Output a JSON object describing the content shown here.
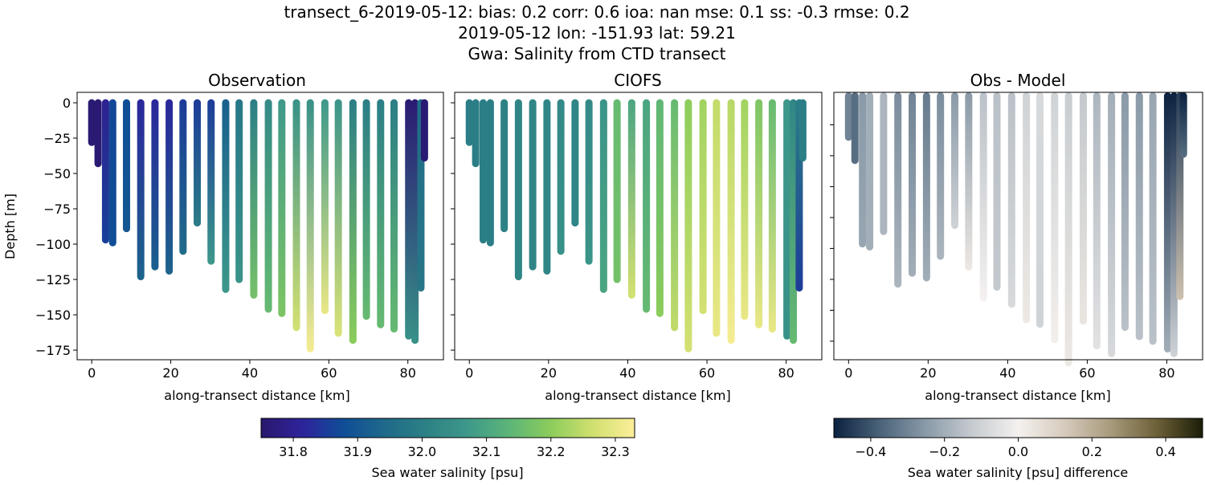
{
  "title_lines": [
    "transect_6-2019-05-12: bias: 0.2  corr: 0.6  ioa: nan  mse: 0.1  ss: -0.3  rmse: 0.2",
    "2019-05-12 lon: -151.93 lat: 59.21",
    "Gwa: Salinity from CTD transect"
  ],
  "chart_data": {
    "type": "scatter",
    "xlabel": "along-transect distance [km]",
    "ylabel": "Depth [m]",
    "xlim": [
      -3.7,
      89
    ],
    "xticks": [
      0,
      20,
      40,
      60,
      80
    ],
    "panels": [
      {
        "title": "Observation",
        "field": "obs",
        "cmap": "haline",
        "ylim": [
          7.4,
          -181.8
        ],
        "yticks": [
          0,
          -25,
          -50,
          -75,
          -100,
          -125,
          -150,
          -175
        ],
        "ytick_labels": [
          "0",
          "−25",
          "−50",
          "−75",
          "−100",
          "−125",
          "−150",
          "−175"
        ],
        "show_ylabels": true
      },
      {
        "title": "CIOFS",
        "field": "model",
        "cmap": "haline",
        "ylim": [
          7.4,
          -181.8
        ],
        "yticks": [
          0,
          -25,
          -50,
          -75,
          -100,
          -125,
          -150,
          -175
        ],
        "show_ylabels": false
      },
      {
        "title": "Obs - Model",
        "field": "diff",
        "cmap": "diff",
        "ylim": [
          1,
          -172
        ],
        "yticks": [
          -20,
          -40,
          -60,
          -80,
          -100,
          -120,
          -140,
          -160
        ],
        "show_ylabels": false
      }
    ],
    "xtick_labels": [
      "0",
      "20",
      "40",
      "60",
      "80"
    ],
    "stations": [
      {
        "km": 0.0,
        "depth": 28,
        "obs": [
          31.76,
          31.76
        ],
        "model": [
          32.0,
          32.0
        ],
        "diff": [
          -0.3,
          -0.3
        ]
      },
      {
        "km": 1.6,
        "depth": 43,
        "obs": [
          31.76,
          31.76
        ],
        "model": [
          32.0,
          32.0
        ],
        "diff": [
          -0.35,
          -0.35
        ]
      },
      {
        "km": 3.5,
        "depth": 97,
        "obs": [
          31.8,
          31.86
        ],
        "model": [
          32.0,
          32.0
        ],
        "diff": [
          -0.25,
          -0.22
        ]
      },
      {
        "km": 5.3,
        "depth": 99,
        "obs": [
          31.87,
          31.88
        ],
        "model": [
          32.0,
          32.0
        ],
        "diff": [
          -0.2,
          -0.2
        ]
      },
      {
        "km": 8.8,
        "depth": 89,
        "obs": [
          31.88,
          31.9
        ],
        "model": [
          32.01,
          32.01
        ],
        "diff": [
          -0.18,
          -0.18
        ]
      },
      {
        "km": 12.4,
        "depth": 123,
        "obs": [
          31.82,
          31.93
        ],
        "model": [
          32.02,
          32.02
        ],
        "diff": [
          -0.28,
          -0.18
        ]
      },
      {
        "km": 16.0,
        "depth": 116,
        "obs": [
          31.82,
          31.92
        ],
        "model": [
          32.02,
          32.02
        ],
        "diff": [
          -0.3,
          -0.2
        ]
      },
      {
        "km": 19.6,
        "depth": 119,
        "obs": [
          31.82,
          31.93
        ],
        "model": [
          32.02,
          32.02
        ],
        "diff": [
          -0.32,
          -0.2
        ]
      },
      {
        "km": 23.1,
        "depth": 105,
        "obs": [
          31.85,
          31.95
        ],
        "model": [
          32.03,
          32.05
        ],
        "diff": [
          -0.28,
          -0.18
        ]
      },
      {
        "km": 26.7,
        "depth": 85,
        "obs": [
          31.85,
          32.0
        ],
        "model": [
          32.02,
          32.02
        ],
        "diff": [
          -0.25,
          -0.1
        ]
      },
      {
        "km": 30.2,
        "depth": 112,
        "obs": [
          31.85,
          32.07
        ],
        "model": [
          32.03,
          32.06
        ],
        "diff": [
          -0.25,
          0.03
        ]
      },
      {
        "km": 33.9,
        "depth": 132,
        "obs": [
          31.92,
          32.07
        ],
        "model": [
          32.06,
          32.1
        ],
        "diff": [
          -0.15,
          0.0
        ]
      },
      {
        "km": 37.3,
        "depth": 125,
        "obs": [
          31.98,
          32.06
        ],
        "model": [
          32.15,
          32.17
        ],
        "diff": [
          -0.15,
          -0.13
        ]
      },
      {
        "km": 41.0,
        "depth": 136,
        "obs": [
          32.0,
          32.17
        ],
        "model": [
          32.1,
          32.27
        ],
        "diff": [
          -0.15,
          -0.08
        ]
      },
      {
        "km": 44.7,
        "depth": 146,
        "obs": [
          32.03,
          32.15
        ],
        "model": [
          32.1,
          32.15
        ],
        "diff": [
          -0.1,
          0.03
        ]
      },
      {
        "km": 48.1,
        "depth": 149,
        "obs": [
          32.07,
          32.18
        ],
        "model": [
          32.14,
          32.2
        ],
        "diff": [
          -0.08,
          -0.1
        ]
      },
      {
        "km": 51.8,
        "depth": 159,
        "obs": [
          32.05,
          32.27
        ],
        "model": [
          32.15,
          32.25
        ],
        "diff": [
          -0.1,
          0.01
        ]
      },
      {
        "km": 55.3,
        "depth": 174,
        "obs": [
          32.05,
          32.32
        ],
        "model": [
          32.2,
          32.27
        ],
        "diff": [
          -0.12,
          0.03
        ]
      },
      {
        "km": 59.0,
        "depth": 147,
        "obs": [
          32.07,
          32.3
        ],
        "model": [
          32.22,
          32.27
        ],
        "diff": [
          -0.13,
          0.04
        ]
      },
      {
        "km": 62.4,
        "depth": 163,
        "obs": [
          32.06,
          32.28
        ],
        "model": [
          32.25,
          32.3
        ],
        "diff": [
          -0.18,
          -0.05
        ]
      },
      {
        "km": 66.1,
        "depth": 168,
        "obs": [
          32.0,
          32.2
        ],
        "model": [
          32.24,
          32.32
        ],
        "diff": [
          -0.2,
          -0.08
        ]
      },
      {
        "km": 69.5,
        "depth": 151,
        "obs": [
          32.0,
          32.15
        ],
        "model": [
          32.22,
          32.3
        ],
        "diff": [
          -0.25,
          -0.15
        ]
      },
      {
        "km": 73.1,
        "depth": 157,
        "obs": [
          32.0,
          32.15
        ],
        "model": [
          32.18,
          32.3
        ],
        "diff": [
          -0.25,
          -0.15
        ]
      },
      {
        "km": 76.5,
        "depth": 160,
        "obs": [
          32.0,
          32.15
        ],
        "model": [
          32.15,
          32.3
        ],
        "diff": [
          -0.22,
          -0.15
        ]
      },
      {
        "km": 80.2,
        "depth": 165,
        "obs": [
          31.76,
          32.05
        ],
        "model": [
          32.07,
          32.05
        ],
        "diff": [
          -0.5,
          -0.2
        ]
      },
      {
        "km": 81.8,
        "depth": 168,
        "obs": [
          31.76,
          32.05
        ],
        "model": [
          32.02,
          32.15
        ],
        "diff": [
          -0.5,
          -0.1
        ]
      },
      {
        "km": 83.3,
        "depth": 131,
        "obs": [
          31.95,
          31.98
        ],
        "model": [
          32.0,
          31.85
        ],
        "diff": [
          -0.45,
          0.15
        ]
      },
      {
        "km": 84.2,
        "depth": 39,
        "obs": [
          31.76,
          31.76
        ],
        "model": [
          32.0,
          32.0
        ],
        "diff": [
          -0.5,
          -0.35
        ]
      }
    ],
    "colorbars": [
      {
        "label": "Sea water salinity [psu]",
        "cmap": "haline",
        "range": [
          31.75,
          32.33
        ],
        "ticks": [
          31.8,
          31.9,
          32.0,
          32.1,
          32.2,
          32.3
        ],
        "tick_labels": [
          "31.8",
          "31.9",
          "32.0",
          "32.1",
          "32.2",
          "32.3"
        ]
      },
      {
        "label": "Sea water salinity [psu] difference",
        "cmap": "diff",
        "range": [
          -0.5,
          0.5
        ],
        "ticks": [
          -0.4,
          -0.2,
          0.0,
          0.2,
          0.4
        ],
        "tick_labels": [
          "−0.4",
          "−0.2",
          "0.0",
          "0.2",
          "0.4"
        ]
      }
    ],
    "colormaps": {
      "haline": [
        "#2a186c",
        "#2e239c",
        "#0f4e96",
        "#1f6a8a",
        "#2d8185",
        "#3e998a",
        "#5cb577",
        "#8dcd5b",
        "#d1e06f",
        "#fdee99"
      ],
      "diff": [
        "#0b2240",
        "#4a6379",
        "#8a9aa8",
        "#c6cbd0",
        "#f4f1ef",
        "#d6cbbd",
        "#a89a7c",
        "#6d6138",
        "#1c1d08"
      ]
    }
  }
}
